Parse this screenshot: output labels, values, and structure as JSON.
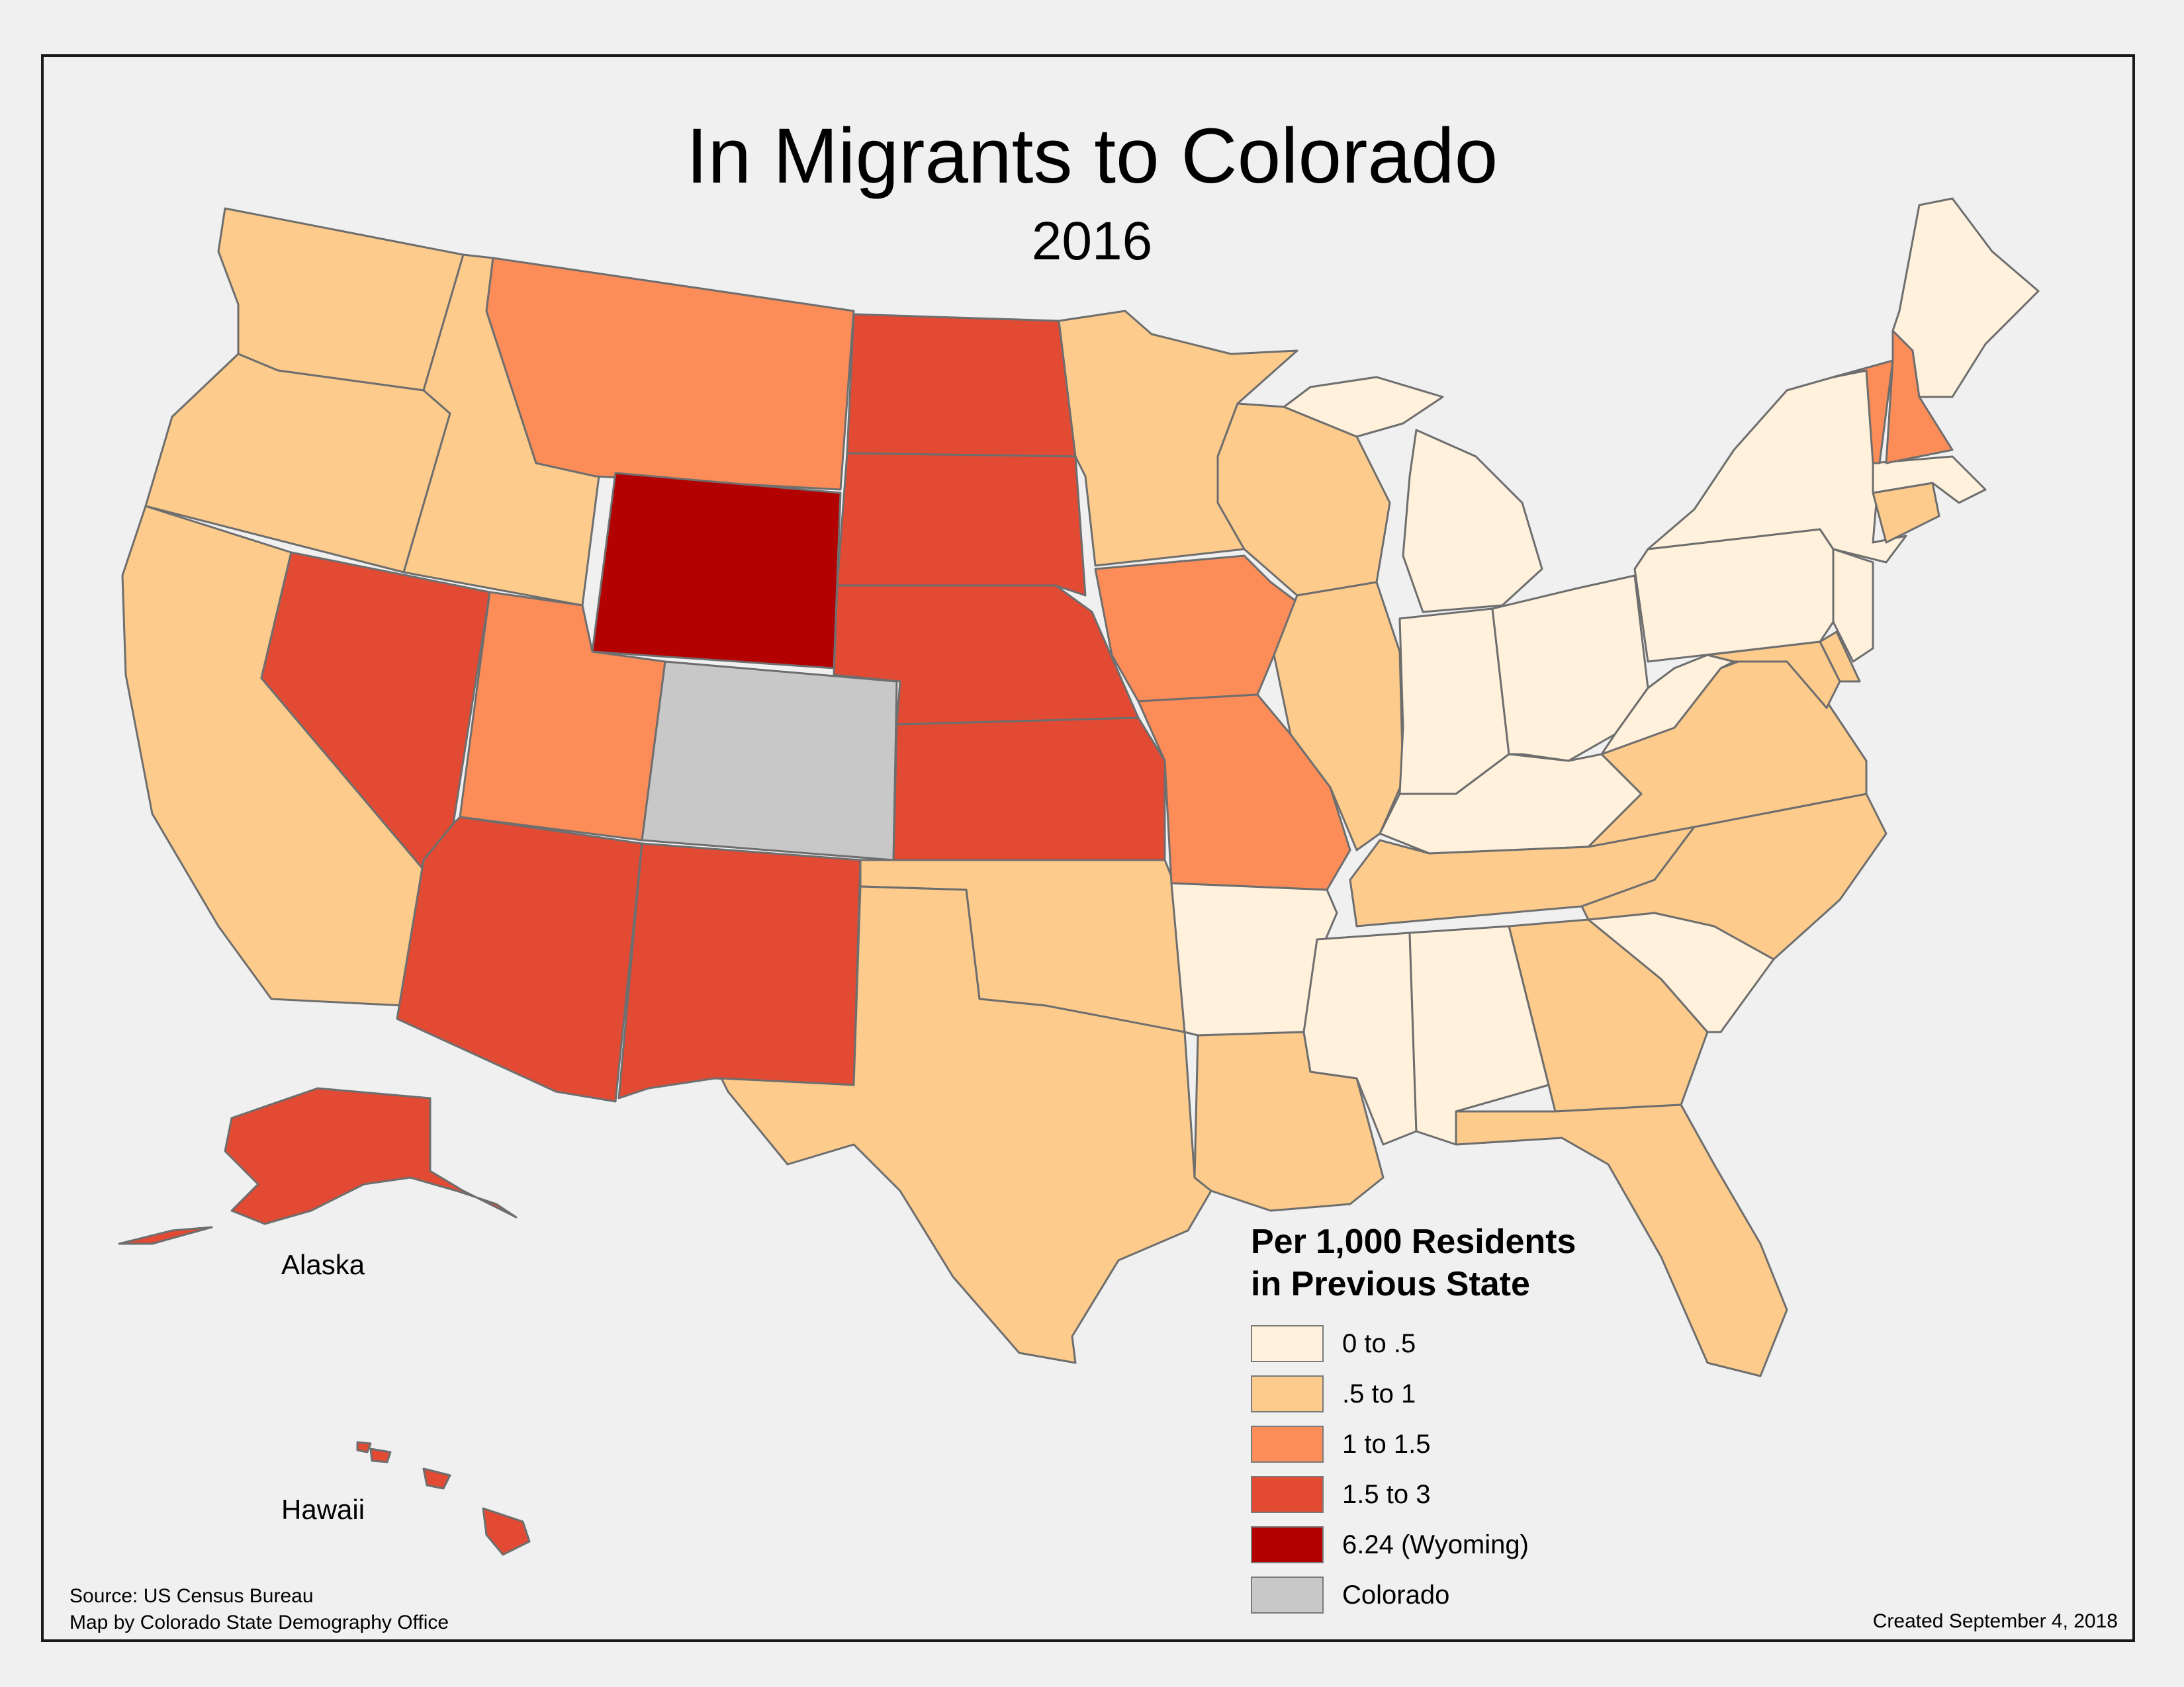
{
  "title": "In Migrants to Colorado",
  "subtitle": "2016",
  "colors": {
    "class_0": "#fff1dc",
    "class_1": "#fdcb8b",
    "class_2": "#fc8d59",
    "class_3": "#e34a33",
    "class_4": "#b30000",
    "colorado": "#c8c8c8",
    "background": "#f0f0f0"
  },
  "map_data": {
    "type": "choropleth",
    "classes": [
      "0 to .5",
      ".5 to 1",
      "1 to 1.5",
      "1.5 to 3",
      "6.24 (Wyoming)",
      "Colorado"
    ],
    "states": {
      "WA": 1,
      "OR": 1,
      "CA": 1,
      "ID": 1,
      "NV": 3,
      "MT": 2,
      "WY": 4,
      "UT": 2,
      "AZ": 3,
      "CO": 5,
      "NM": 3,
      "ND": 3,
      "SD": 3,
      "NE": 3,
      "KS": 3,
      "OK": 1,
      "TX": 1,
      "MN": 1,
      "IA": 2,
      "MO": 2,
      "AR": 0,
      "LA": 1,
      "WI": 1,
      "IL": 1,
      "MI": 0,
      "IN": 0,
      "OH": 0,
      "KY": 0,
      "TN": 1,
      "MS": 0,
      "AL": 0,
      "GA": 1,
      "FL": 1,
      "SC": 0,
      "NC": 1,
      "VA": 1,
      "WV": 0,
      "PA": 0,
      "NY": 0,
      "VT": 2,
      "NH": 2,
      "ME": 0,
      "MA": 0,
      "CT": 1,
      "NJ": 0,
      "DE": 1,
      "MD": 1,
      "AK": 3,
      "HI": 3
    }
  },
  "insets": {
    "alaska_label": "Alaska",
    "hawaii_label": "Hawaii"
  },
  "legend": {
    "title_line1": "Per 1,000 Residents",
    "title_line2": "in Previous State",
    "items": [
      {
        "label": "0 to .5",
        "color": "#fff1dc"
      },
      {
        "label": ".5 to 1",
        "color": "#fdcb8b"
      },
      {
        "label": "1 to 1.5",
        "color": "#fc8d59"
      },
      {
        "label": "1.5 to 3",
        "color": "#e34a33"
      },
      {
        "label": "6.24 (Wyoming)",
        "color": "#b30000"
      },
      {
        "label": "Colorado",
        "color": "#c8c8c8"
      }
    ]
  },
  "footer": {
    "source": "Source: US Census Bureau",
    "credit": "Map by Colorado State Demography Office",
    "created": "Created September 4, 2018"
  }
}
